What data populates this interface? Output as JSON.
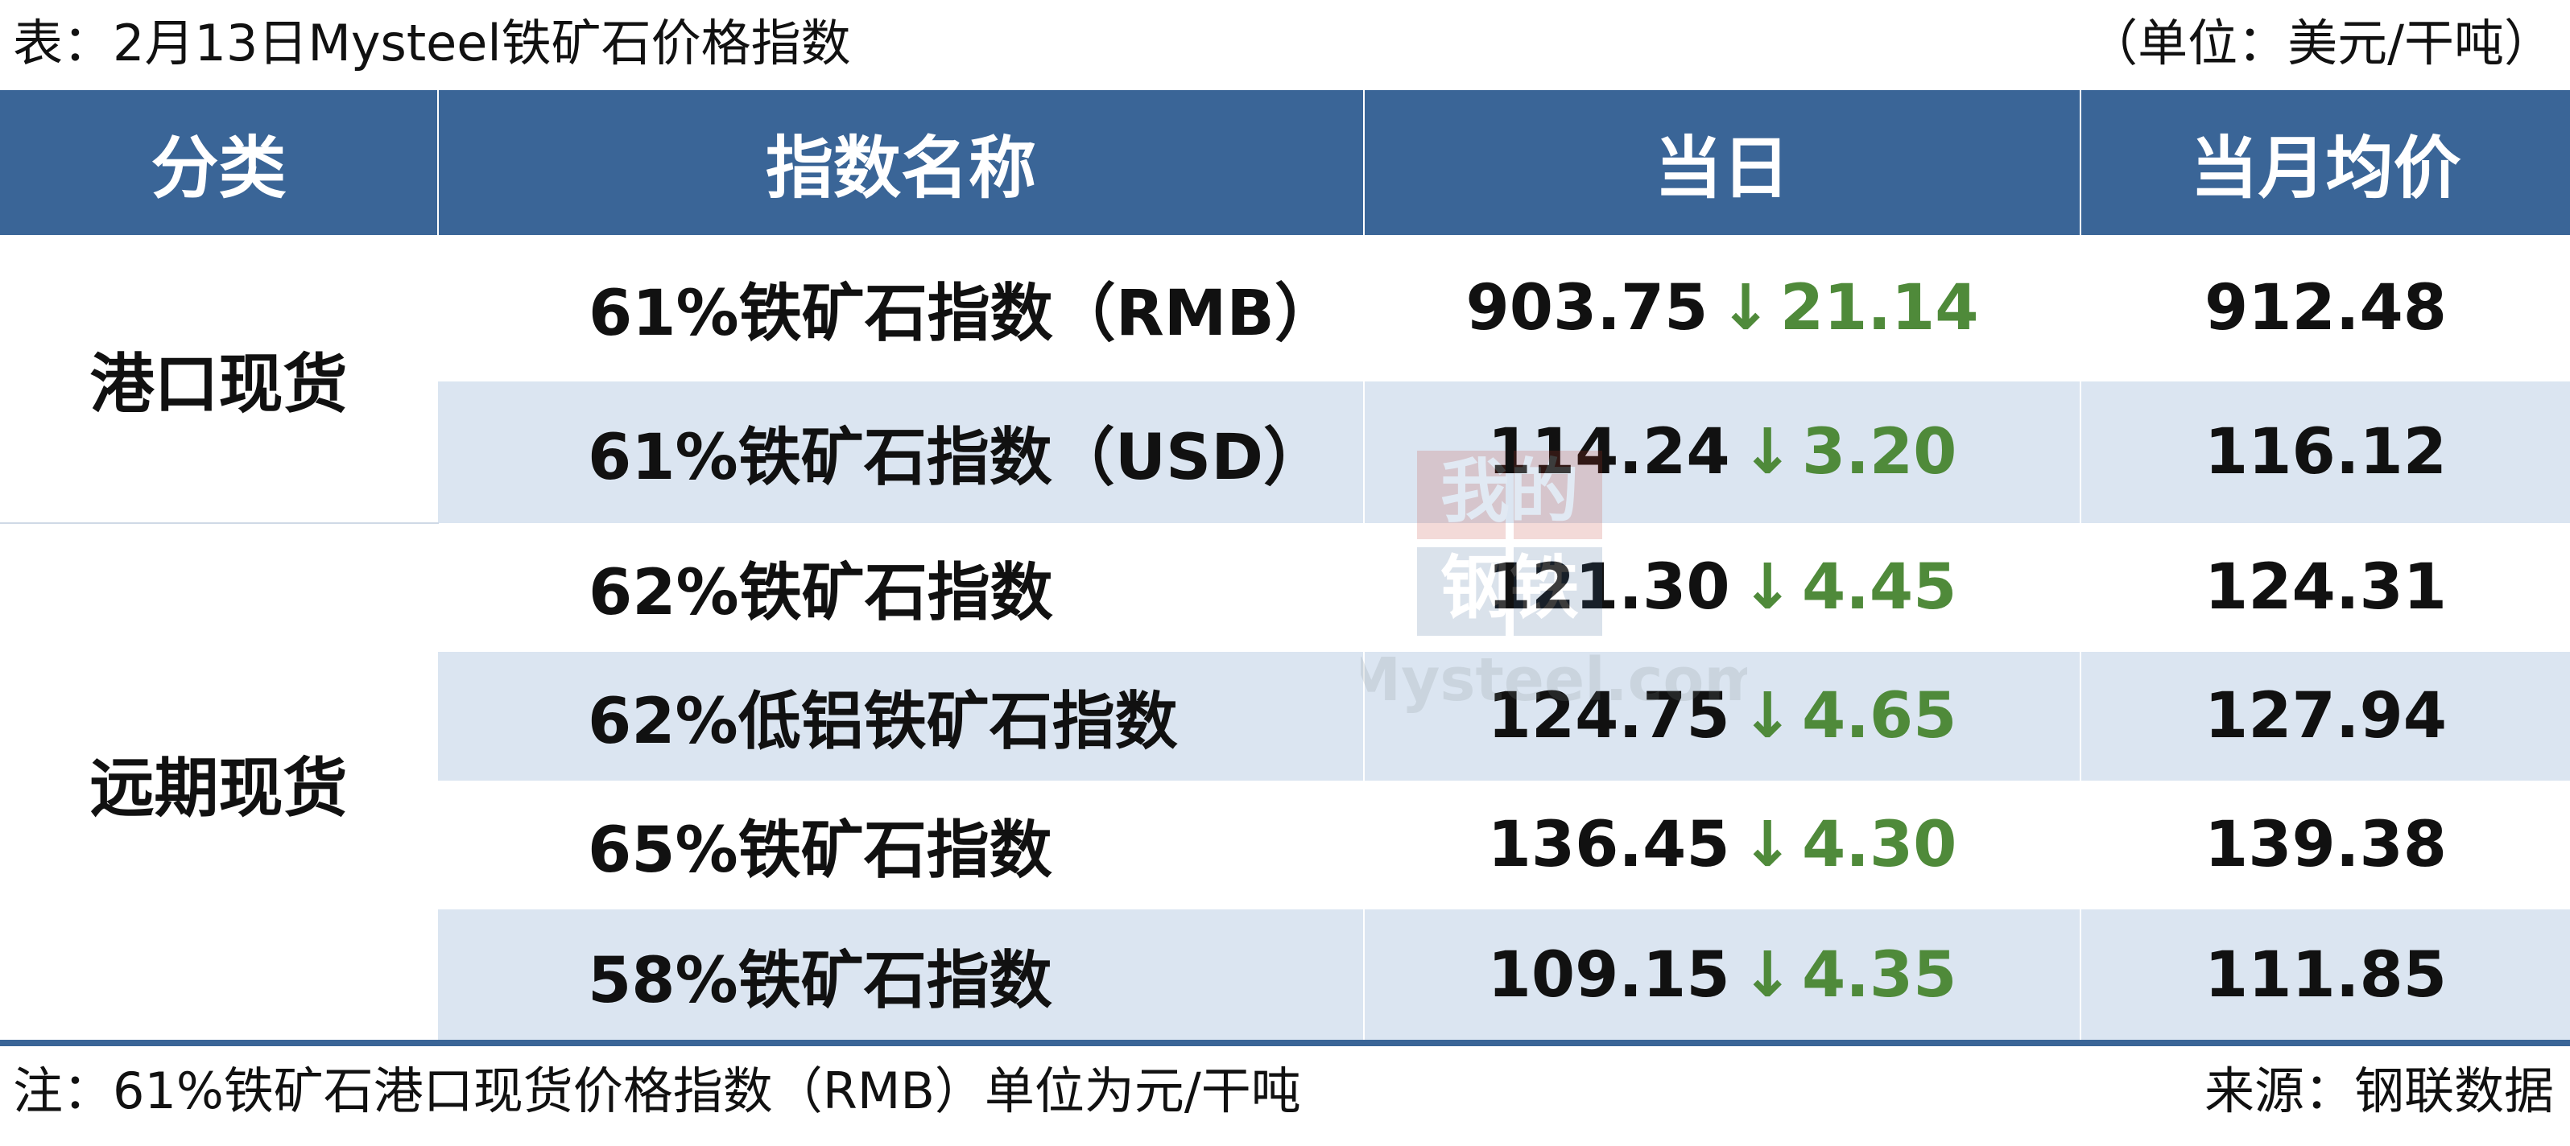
{
  "header": {
    "caption": "表：2月13日Mysteel铁矿石价格指数",
    "unit": "（单位：美元/干吨）"
  },
  "table": {
    "columns": [
      "分类",
      "指数名称",
      "当日",
      "当月均价"
    ],
    "groups": [
      {
        "category": "港口现货",
        "row_start": 0,
        "row_span": 2
      },
      {
        "category": "远期现货",
        "row_start": 2,
        "row_span": 4
      }
    ],
    "rows": [
      {
        "name": "61%铁矿石指数（RMB）",
        "today": "903.75",
        "arrow": "↓",
        "change": "21.14",
        "avg": "912.48"
      },
      {
        "name": "61%铁矿石指数（USD）",
        "today": "114.24",
        "arrow": "↓",
        "change": "3.20",
        "avg": "116.12"
      },
      {
        "name": "62%铁矿石指数",
        "today": "121.30",
        "arrow": "↓",
        "change": "4.45",
        "avg": "124.31"
      },
      {
        "name": "62%低铝铁矿石指数",
        "today": "124.75",
        "arrow": "↓",
        "change": "4.65",
        "avg": "127.94"
      },
      {
        "name": "65%铁矿石指数",
        "today": "136.45",
        "arrow": "↓",
        "change": "4.30",
        "avg": "139.38"
      },
      {
        "name": "58%铁矿石指数",
        "today": "109.15",
        "arrow": "↓",
        "change": "4.35",
        "avg": "111.85"
      }
    ]
  },
  "footer": {
    "note": "注：61%铁矿石港口现货价格指数（RMB）单位为元/干吨",
    "source": "来源：钢联数据"
  },
  "watermark": {
    "line1": "我的",
    "line2": "钢铁",
    "line3": "Mysteel.com"
  },
  "colors": {
    "header_bg": "#3a6597",
    "band_bg": "#dbe5f1",
    "down_color": "#4f8a3a"
  }
}
